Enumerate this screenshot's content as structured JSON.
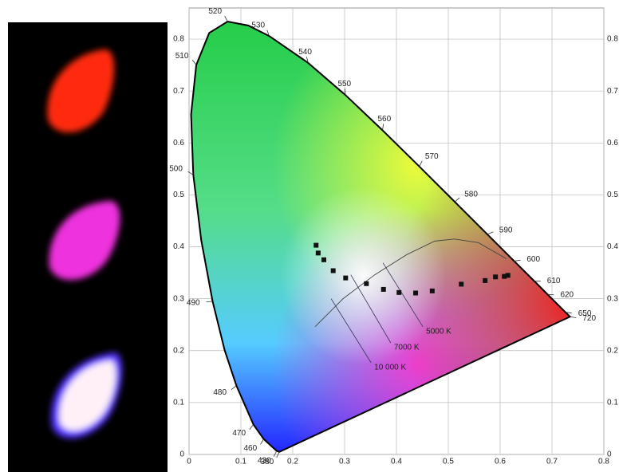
{
  "chart_data": {
    "type": "scatter",
    "xlim": [
      0,
      0.8
    ],
    "ylim": [
      0,
      0.86
    ],
    "xticks": [
      0,
      0.1,
      0.2,
      0.3,
      0.4,
      0.5,
      0.6,
      0.7,
      0.8
    ],
    "yticks": [
      0,
      0.1,
      0.2,
      0.3,
      0.4,
      0.5,
      0.6,
      0.7,
      0.8
    ],
    "grid": true,
    "color": "#111",
    "x": [
      0.245,
      0.249,
      0.26,
      0.278,
      0.302,
      0.342,
      0.375,
      0.405,
      0.437,
      0.469,
      0.525,
      0.571,
      0.591,
      0.608,
      0.615
    ],
    "values": [
      0.403,
      0.388,
      0.375,
      0.354,
      0.34,
      0.329,
      0.318,
      0.312,
      0.311,
      0.315,
      0.328,
      0.335,
      0.342,
      0.343,
      0.345
    ],
    "locus": {
      "x": [
        0.1741,
        0.1689,
        0.144,
        0.1241,
        0.0913,
        0.0687,
        0.0454,
        0.0235,
        0.0082,
        0.0039,
        0.0139,
        0.0389,
        0.0743,
        0.1142,
        0.1547,
        0.2296,
        0.3016,
        0.3731,
        0.4441,
        0.5125,
        0.5752,
        0.627,
        0.6658,
        0.6915,
        0.726,
        0.7347
      ],
      "y": [
        0.005,
        0.0069,
        0.0297,
        0.0578,
        0.1327,
        0.2007,
        0.295,
        0.4127,
        0.5384,
        0.6548,
        0.7502,
        0.812,
        0.8338,
        0.8262,
        0.8059,
        0.7543,
        0.6923,
        0.6245,
        0.5547,
        0.4866,
        0.4242,
        0.3725,
        0.334,
        0.3083,
        0.274,
        0.2653
      ],
      "labels": [
        "380",
        "430",
        "460",
        "470",
        "480",
        null,
        "490",
        null,
        "500",
        null,
        "510",
        null,
        "520",
        null,
        "530",
        "540",
        "550",
        "560",
        "570",
        "580",
        "590",
        "600",
        "610",
        "620",
        "650",
        "720"
      ]
    },
    "planckian_locus": {
      "x": [
        0.243,
        0.297,
        0.358,
        0.42,
        0.474,
        0.512,
        0.558,
        0.612
      ],
      "y": [
        0.246,
        0.3,
        0.346,
        0.385,
        0.411,
        0.415,
        0.408,
        0.377
      ]
    },
    "isotherms": [
      {
        "label": "5000 K",
        "x": [
          0.374,
          0.451
        ],
        "y": [
          0.369,
          0.246
        ]
      },
      {
        "label": "7000 K",
        "x": [
          0.312,
          0.389
        ],
        "y": [
          0.346,
          0.215
        ]
      },
      {
        "label": "10 000 K",
        "x": [
          0.274,
          0.351
        ],
        "y": [
          0.3,
          0.177
        ]
      }
    ]
  }
}
